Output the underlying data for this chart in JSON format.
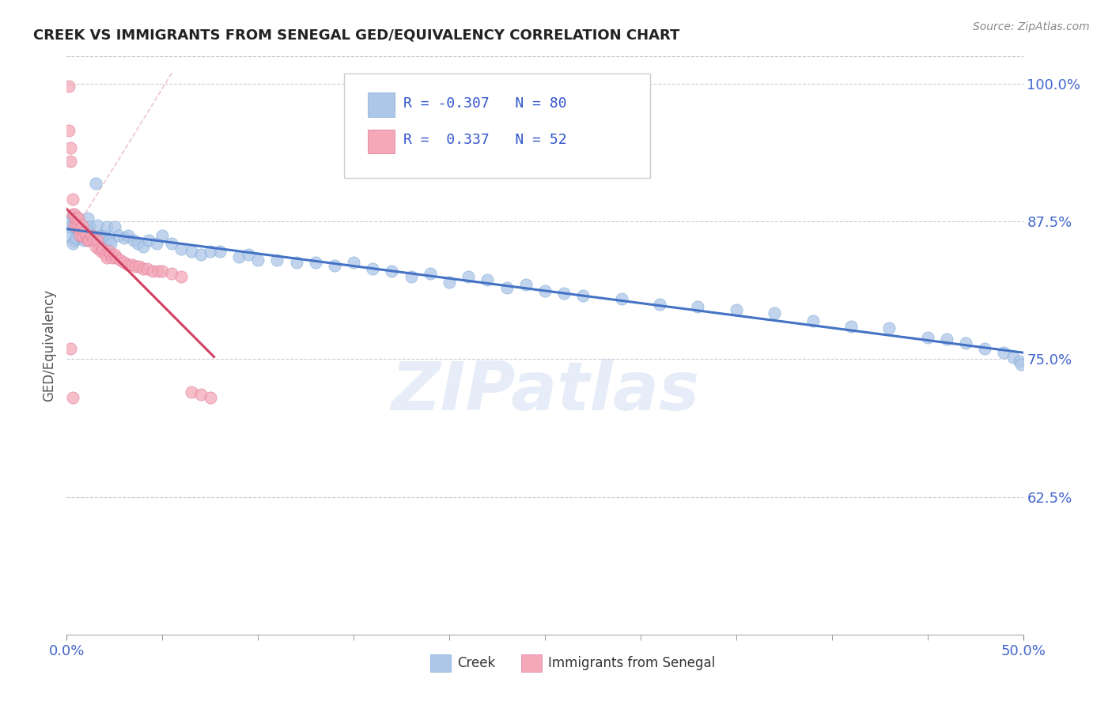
{
  "title": "CREEK VS IMMIGRANTS FROM SENEGAL GED/EQUIVALENCY CORRELATION CHART",
  "source": "Source: ZipAtlas.com",
  "ylabel": "GED/Equivalency",
  "xmin": 0.0,
  "xmax": 0.5,
  "ymin": 0.5,
  "ymax": 1.025,
  "yticks": [
    0.625,
    0.75,
    0.875,
    1.0
  ],
  "yticklabels": [
    "62.5%",
    "75.0%",
    "87.5%",
    "100.0%"
  ],
  "creek_color": "#aec6e8",
  "creek_edge_color": "#7aaad4",
  "senegal_color": "#f4a8b8",
  "senegal_edge_color": "#e07898",
  "creek_line_color": "#4472c4",
  "senegal_line_color": "#d04060",
  "senegal_dashed_color": "#e8b8c0",
  "creek_R": -0.307,
  "creek_N": 80,
  "senegal_R": 0.337,
  "senegal_N": 52,
  "legend_label_creek": "Creek",
  "legend_label_senegal": "Immigrants from Senegal",
  "watermark": "ZIPatlas",
  "creek_x": [
    0.001,
    0.001,
    0.002,
    0.003,
    0.003,
    0.004,
    0.004,
    0.005,
    0.005,
    0.006,
    0.006,
    0.007,
    0.008,
    0.009,
    0.01,
    0.011,
    0.012,
    0.013,
    0.014,
    0.015,
    0.016,
    0.017,
    0.018,
    0.019,
    0.02,
    0.021,
    0.022,
    0.023,
    0.025,
    0.027,
    0.03,
    0.032,
    0.035,
    0.037,
    0.04,
    0.043,
    0.047,
    0.05,
    0.055,
    0.06,
    0.065,
    0.07,
    0.075,
    0.08,
    0.09,
    0.095,
    0.1,
    0.11,
    0.12,
    0.13,
    0.14,
    0.15,
    0.16,
    0.17,
    0.18,
    0.19,
    0.2,
    0.21,
    0.22,
    0.23,
    0.24,
    0.25,
    0.26,
    0.27,
    0.29,
    0.31,
    0.33,
    0.35,
    0.37,
    0.39,
    0.41,
    0.43,
    0.45,
    0.46,
    0.47,
    0.48,
    0.49,
    0.495,
    0.498,
    0.499
  ],
  "creek_y": [
    0.875,
    0.862,
    0.87,
    0.855,
    0.88,
    0.87,
    0.858,
    0.875,
    0.86,
    0.878,
    0.865,
    0.872,
    0.86,
    0.858,
    0.868,
    0.878,
    0.87,
    0.862,
    0.86,
    0.91,
    0.872,
    0.858,
    0.862,
    0.858,
    0.862,
    0.87,
    0.858,
    0.855,
    0.87,
    0.862,
    0.86,
    0.862,
    0.858,
    0.855,
    0.852,
    0.858,
    0.855,
    0.862,
    0.855,
    0.85,
    0.848,
    0.845,
    0.848,
    0.848,
    0.843,
    0.845,
    0.84,
    0.84,
    0.838,
    0.838,
    0.835,
    0.838,
    0.832,
    0.83,
    0.825,
    0.828,
    0.82,
    0.825,
    0.822,
    0.815,
    0.818,
    0.812,
    0.81,
    0.808,
    0.805,
    0.8,
    0.798,
    0.795,
    0.792,
    0.785,
    0.78,
    0.778,
    0.77,
    0.768,
    0.765,
    0.76,
    0.756,
    0.752,
    0.748,
    0.745
  ],
  "senegal_x": [
    0.001,
    0.001,
    0.002,
    0.002,
    0.003,
    0.003,
    0.004,
    0.004,
    0.005,
    0.005,
    0.006,
    0.006,
    0.007,
    0.007,
    0.008,
    0.008,
    0.009,
    0.01,
    0.011,
    0.012,
    0.013,
    0.014,
    0.015,
    0.016,
    0.017,
    0.018,
    0.019,
    0.02,
    0.021,
    0.022,
    0.023,
    0.024,
    0.025,
    0.026,
    0.028,
    0.03,
    0.032,
    0.034,
    0.036,
    0.038,
    0.04,
    0.042,
    0.045,
    0.048,
    0.05,
    0.055,
    0.06,
    0.065,
    0.07,
    0.075,
    0.002,
    0.003
  ],
  "senegal_y": [
    0.998,
    0.958,
    0.942,
    0.93,
    0.882,
    0.895,
    0.872,
    0.882,
    0.87,
    0.878,
    0.872,
    0.878,
    0.868,
    0.862,
    0.862,
    0.872,
    0.866,
    0.862,
    0.858,
    0.858,
    0.862,
    0.858,
    0.852,
    0.858,
    0.85,
    0.848,
    0.85,
    0.845,
    0.842,
    0.848,
    0.845,
    0.842,
    0.845,
    0.842,
    0.84,
    0.838,
    0.836,
    0.836,
    0.834,
    0.834,
    0.832,
    0.832,
    0.83,
    0.83,
    0.83,
    0.828,
    0.825,
    0.72,
    0.718,
    0.715,
    0.76,
    0.715
  ]
}
